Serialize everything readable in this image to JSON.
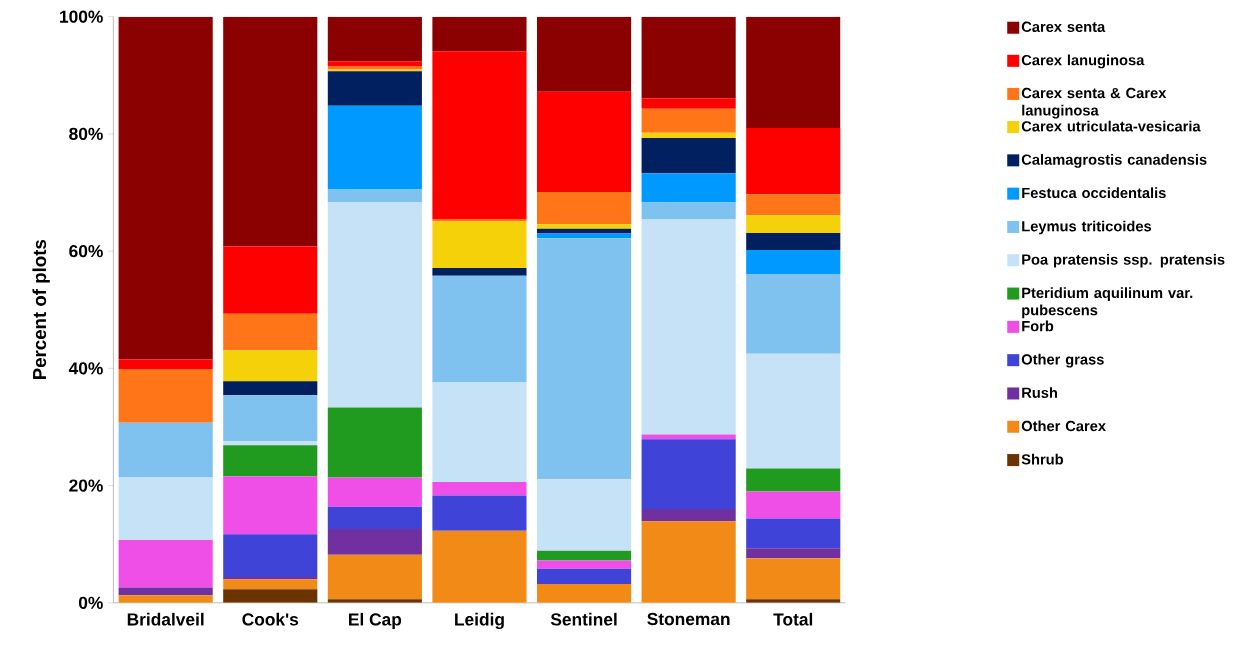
{
  "chart_data": {
    "type": "bar",
    "stacked": true,
    "ylabel": "Percent of plots",
    "legend": "right",
    "categories": [
      "Bridalveil",
      "Cook's",
      "El Cap",
      "Leidig",
      "Sentinel",
      "Stoneman",
      "Total"
    ],
    "ylim": [
      0,
      100
    ],
    "yticks": [
      {
        "value": 0,
        "label": "0%"
      },
      {
        "value": 20,
        "label": "20%"
      },
      {
        "value": 40,
        "label": "40%"
      },
      {
        "value": 60,
        "label": "60%"
      },
      {
        "value": 80,
        "label": "80%"
      },
      {
        "value": 100,
        "label": "100%"
      }
    ],
    "series": [
      {
        "name": "Shrub",
        "color": "#6b3300",
        "values": [
          0,
          2.3,
          0.6,
          0,
          0,
          0,
          0.6
        ]
      },
      {
        "name": "Other Carex",
        "color": "#f28a18",
        "values": [
          1.3,
          1.7,
          7.6,
          12.3,
          3.2,
          13.9,
          7.0
        ]
      },
      {
        "name": "Rush",
        "color": "#7030a0",
        "values": [
          1.3,
          0.4,
          4.4,
          0,
          0,
          2.1,
          1.7
        ]
      },
      {
        "name": "Other grass",
        "color": "#4043d8",
        "values": [
          0,
          7.3,
          3.8,
          6.0,
          2.6,
          11.9,
          5.1
        ]
      },
      {
        "name": "Forb",
        "color": "#ef4fe6",
        "values": [
          8.1,
          9.9,
          5.0,
          2.3,
          1.4,
          0.8,
          4.6
        ]
      },
      {
        "name": "Pteridium aquilinum var. pubescens",
        "color": "#219a20",
        "values": [
          0,
          5.3,
          11.9,
          0,
          1.7,
          0,
          3.9
        ]
      },
      {
        "name": "Poa pratensis ssp. pratensis",
        "color": "#c6e2f7",
        "values": [
          10.7,
          0.7,
          35.0,
          17.0,
          12.2,
          36.7,
          19.6
        ]
      },
      {
        "name": "Leymus triticoides",
        "color": "#7fc2f0",
        "values": [
          9.3,
          7.8,
          2.2,
          18.2,
          41.1,
          2.9,
          13.6
        ]
      },
      {
        "name": "Festuca occidentalis",
        "color": "#0099ff",
        "values": [
          0,
          0,
          14.3,
          0,
          0.8,
          5.0,
          4.1
        ]
      },
      {
        "name": "Calamagrostis canadensis",
        "color": "#002060",
        "values": [
          0,
          2.4,
          5.9,
          1.3,
          0.8,
          6.0,
          2.9
        ]
      },
      {
        "name": "Carex utriculata-vesicaria",
        "color": "#f5d10a",
        "values": [
          0,
          5.3,
          0.3,
          8.0,
          0.8,
          0.9,
          3.0
        ]
      },
      {
        "name": "Carex senta & Carex lanuginosa",
        "color": "#ff7518",
        "values": [
          9.2,
          6.2,
          0.6,
          0.4,
          5.5,
          4.1,
          3.6
        ]
      },
      {
        "name": "Carex lanuginosa",
        "color": "#ff0000",
        "values": [
          1.6,
          11.5,
          0.8,
          28.6,
          17.1,
          1.8,
          11.3
        ]
      },
      {
        "name": "Carex senta",
        "color": "#8b0000",
        "values": [
          58.5,
          39.2,
          7.6,
          5.9,
          12.8,
          13.9,
          19.0
        ]
      }
    ]
  }
}
